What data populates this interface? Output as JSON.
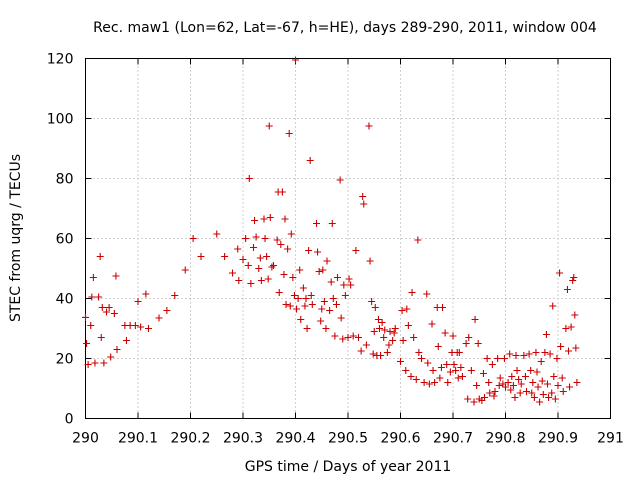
{
  "chart_data": {
    "type": "scatter",
    "title": "Rec. maw1 (Lon=62, Lat=-67, h=HE), days 289-290, 2011, window 004",
    "xlabel": "GPS time / Days of year 2011",
    "ylabel": "STEC from uqrg / TECUs",
    "xlim": [
      290,
      291
    ],
    "ylim": [
      0,
      120
    ],
    "xticks": [
      "290",
      "290.1",
      "290.2",
      "290.3",
      "290.4",
      "290.5",
      "290.6",
      "290.7",
      "290.8",
      "290.9",
      "291"
    ],
    "yticks": [
      "0",
      "20",
      "40",
      "60",
      "80",
      "100",
      "120"
    ],
    "grid": true,
    "marker": "plus",
    "color": "#cc0000",
    "points": [
      [
        290.0,
        33.7
      ],
      [
        290.002,
        25.0
      ],
      [
        290.005,
        18.0
      ],
      [
        290.01,
        31.0
      ],
      [
        290.012,
        40.5
      ],
      [
        290.015,
        47.0
      ],
      [
        290.018,
        18.5
      ],
      [
        290.025,
        40.5
      ],
      [
        290.028,
        54.0
      ],
      [
        290.03,
        27.0
      ],
      [
        290.032,
        37.0
      ],
      [
        290.035,
        18.5
      ],
      [
        290.04,
        35.5
      ],
      [
        290.045,
        37.0
      ],
      [
        290.048,
        20.5
      ],
      [
        290.055,
        35.0
      ],
      [
        290.058,
        47.5
      ],
      [
        290.06,
        23.0
      ],
      [
        290.075,
        31.0
      ],
      [
        290.078,
        26.0
      ],
      [
        290.085,
        31.0
      ],
      [
        290.095,
        31.0
      ],
      [
        290.1,
        39.0
      ],
      [
        290.105,
        30.5
      ],
      [
        290.115,
        41.5
      ],
      [
        290.12,
        30.0
      ],
      [
        290.14,
        33.5
      ],
      [
        290.155,
        36.0
      ],
      [
        290.17,
        41.0
      ],
      [
        290.19,
        49.5
      ],
      [
        290.205,
        60.0
      ],
      [
        290.22,
        54.0
      ],
      [
        290.25,
        61.5
      ],
      [
        290.265,
        54.0
      ],
      [
        290.28,
        48.5
      ],
      [
        290.29,
        56.5
      ],
      [
        290.292,
        46.0
      ],
      [
        290.3,
        53.0
      ],
      [
        290.305,
        60.0
      ],
      [
        290.31,
        51.0
      ],
      [
        290.312,
        80.0
      ],
      [
        290.315,
        45.0
      ],
      [
        290.32,
        57.0
      ],
      [
        290.322,
        66.0
      ],
      [
        290.325,
        60.5
      ],
      [
        290.33,
        50.0
      ],
      [
        290.333,
        53.5
      ],
      [
        290.335,
        46.0
      ],
      [
        290.34,
        66.5
      ],
      [
        290.342,
        60.0
      ],
      [
        290.345,
        54.0
      ],
      [
        290.348,
        46.5
      ],
      [
        290.35,
        97.5
      ],
      [
        290.352,
        67.0
      ],
      [
        290.355,
        50.5
      ],
      [
        290.358,
        51.0
      ],
      [
        290.365,
        59.5
      ],
      [
        290.367,
        75.5
      ],
      [
        290.369,
        42.0
      ],
      [
        290.372,
        58.0
      ],
      [
        290.375,
        75.5
      ],
      [
        290.378,
        48.0
      ],
      [
        290.38,
        66.5
      ],
      [
        290.382,
        38.0
      ],
      [
        290.385,
        56.5
      ],
      [
        290.388,
        95.0
      ],
      [
        290.39,
        37.5
      ],
      [
        290.392,
        61.5
      ],
      [
        290.395,
        47.0
      ],
      [
        290.398,
        41.0
      ],
      [
        290.4,
        119.5
      ],
      [
        290.402,
        36.5
      ],
      [
        290.405,
        40.0
      ],
      [
        290.408,
        49.5
      ],
      [
        290.41,
        33.0
      ],
      [
        290.415,
        43.5
      ],
      [
        290.418,
        37.5
      ],
      [
        290.42,
        40.0
      ],
      [
        290.422,
        30.0
      ],
      [
        290.425,
        56.0
      ],
      [
        290.428,
        86.0
      ],
      [
        290.43,
        41.0
      ],
      [
        290.432,
        38.0
      ],
      [
        290.44,
        65.0
      ],
      [
        290.442,
        55.5
      ],
      [
        290.445,
        49.0
      ],
      [
        290.448,
        32.5
      ],
      [
        290.45,
        36.5
      ],
      [
        290.452,
        49.5
      ],
      [
        290.455,
        39.0
      ],
      [
        290.458,
        30.0
      ],
      [
        290.46,
        52.5
      ],
      [
        290.465,
        36.0
      ],
      [
        290.468,
        45.5
      ],
      [
        290.47,
        65.0
      ],
      [
        290.472,
        40.0
      ],
      [
        290.475,
        27.5
      ],
      [
        290.478,
        38.0
      ],
      [
        290.48,
        47.0
      ],
      [
        290.485,
        79.5
      ],
      [
        290.487,
        33.5
      ],
      [
        290.49,
        26.5
      ],
      [
        290.492,
        44.5
      ],
      [
        290.495,
        41.0
      ],
      [
        290.5,
        27.0
      ],
      [
        290.502,
        46.5
      ],
      [
        290.505,
        44.5
      ],
      [
        290.51,
        27.5
      ],
      [
        290.515,
        56.0
      ],
      [
        290.52,
        27.0
      ],
      [
        290.525,
        22.5
      ],
      [
        290.528,
        74.0
      ],
      [
        290.53,
        71.5
      ],
      [
        290.535,
        24.5
      ],
      [
        290.54,
        97.5
      ],
      [
        290.542,
        52.5
      ],
      [
        290.545,
        39.0
      ],
      [
        290.548,
        21.5
      ],
      [
        290.55,
        29.0
      ],
      [
        290.552,
        37.0
      ],
      [
        290.555,
        21.0
      ],
      [
        290.558,
        33.0
      ],
      [
        290.56,
        30.0
      ],
      [
        290.562,
        21.0
      ],
      [
        290.565,
        32.0
      ],
      [
        290.568,
        27.0
      ],
      [
        290.57,
        29.5
      ],
      [
        290.575,
        22.0
      ],
      [
        290.578,
        24.5
      ],
      [
        290.58,
        29.0
      ],
      [
        290.585,
        26.0
      ],
      [
        290.588,
        28.5
      ],
      [
        290.59,
        30.0
      ],
      [
        290.6,
        19.0
      ],
      [
        290.603,
        36.0
      ],
      [
        290.605,
        26.0
      ],
      [
        290.61,
        16.0
      ],
      [
        290.612,
        36.5
      ],
      [
        290.615,
        31.0
      ],
      [
        290.62,
        14.0
      ],
      [
        290.622,
        42.0
      ],
      [
        290.625,
        27.0
      ],
      [
        290.63,
        13.0
      ],
      [
        290.633,
        59.5
      ],
      [
        290.635,
        22.0
      ],
      [
        290.64,
        20.0
      ],
      [
        290.645,
        12.0
      ],
      [
        290.65,
        41.5
      ],
      [
        290.652,
        18.5
      ],
      [
        290.655,
        11.5
      ],
      [
        290.66,
        31.5
      ],
      [
        290.662,
        16.0
      ],
      [
        290.665,
        12.0
      ],
      [
        290.67,
        37.0
      ],
      [
        290.672,
        24.0
      ],
      [
        290.675,
        13.5
      ],
      [
        290.678,
        17.0
      ],
      [
        290.68,
        37.0
      ],
      [
        290.685,
        28.5
      ],
      [
        290.688,
        18.0
      ],
      [
        290.69,
        12.0
      ],
      [
        290.695,
        15.5
      ],
      [
        290.698,
        22.0
      ],
      [
        290.7,
        27.5
      ],
      [
        290.702,
        18.0
      ],
      [
        290.705,
        16.0
      ],
      [
        290.708,
        22.0
      ],
      [
        290.71,
        13.5
      ],
      [
        290.712,
        22.0
      ],
      [
        290.715,
        17.0
      ],
      [
        290.718,
        14.0
      ],
      [
        290.725,
        25.0
      ],
      [
        290.728,
        6.5
      ],
      [
        290.73,
        27.0
      ],
      [
        290.735,
        16.0
      ],
      [
        290.74,
        5.5
      ],
      [
        290.742,
        33.0
      ],
      [
        290.745,
        11.0
      ],
      [
        290.748,
        25.0
      ],
      [
        290.75,
        6.5
      ],
      [
        290.755,
        6.0
      ],
      [
        290.758,
        15.0
      ],
      [
        290.76,
        7.0
      ],
      [
        290.765,
        20.0
      ],
      [
        290.768,
        12.0
      ],
      [
        290.77,
        8.5
      ],
      [
        290.775,
        18.0
      ],
      [
        290.778,
        7.5
      ],
      [
        290.78,
        9.0
      ],
      [
        290.785,
        20.0
      ],
      [
        290.788,
        11.0
      ],
      [
        290.79,
        13.5
      ],
      [
        290.795,
        11.5
      ],
      [
        290.798,
        20.0
      ],
      [
        290.8,
        10.5
      ],
      [
        290.805,
        12.0
      ],
      [
        290.808,
        21.5
      ],
      [
        290.81,
        9.5
      ],
      [
        290.812,
        14.0
      ],
      [
        290.815,
        11.0
      ],
      [
        290.818,
        7.0
      ],
      [
        290.82,
        21.0
      ],
      [
        290.822,
        16.0
      ],
      [
        290.825,
        13.0
      ],
      [
        290.828,
        8.5
      ],
      [
        290.83,
        11.5
      ],
      [
        290.835,
        21.0
      ],
      [
        290.838,
        14.0
      ],
      [
        290.84,
        9.0
      ],
      [
        290.845,
        21.5
      ],
      [
        290.848,
        16.0
      ],
      [
        290.85,
        8.5
      ],
      [
        290.852,
        12.0
      ],
      [
        290.855,
        7.0
      ],
      [
        290.858,
        22.0
      ],
      [
        290.86,
        15.5
      ],
      [
        290.862,
        10.5
      ],
      [
        290.865,
        5.5
      ],
      [
        290.868,
        19.0
      ],
      [
        290.87,
        12.5
      ],
      [
        290.872,
        8.0
      ],
      [
        290.875,
        22.0
      ],
      [
        290.878,
        28.0
      ],
      [
        290.88,
        11.5
      ],
      [
        290.882,
        7.0
      ],
      [
        290.885,
        21.5
      ],
      [
        290.888,
        8.5
      ],
      [
        290.89,
        37.5
      ],
      [
        290.892,
        14.0
      ],
      [
        290.895,
        6.5
      ],
      [
        290.898,
        20.0
      ],
      [
        290.9,
        11.0
      ],
      [
        290.903,
        48.5
      ],
      [
        290.905,
        24.0
      ],
      [
        290.908,
        13.5
      ],
      [
        290.91,
        9.0
      ],
      [
        290.915,
        30.0
      ],
      [
        290.918,
        43.0
      ],
      [
        290.92,
        22.5
      ],
      [
        290.922,
        10.5
      ],
      [
        290.925,
        30.5
      ],
      [
        290.928,
        46.0
      ],
      [
        290.93,
        47.0
      ],
      [
        290.932,
        34.5
      ],
      [
        290.934,
        23.5
      ],
      [
        290.936,
        12.0
      ]
    ]
  }
}
